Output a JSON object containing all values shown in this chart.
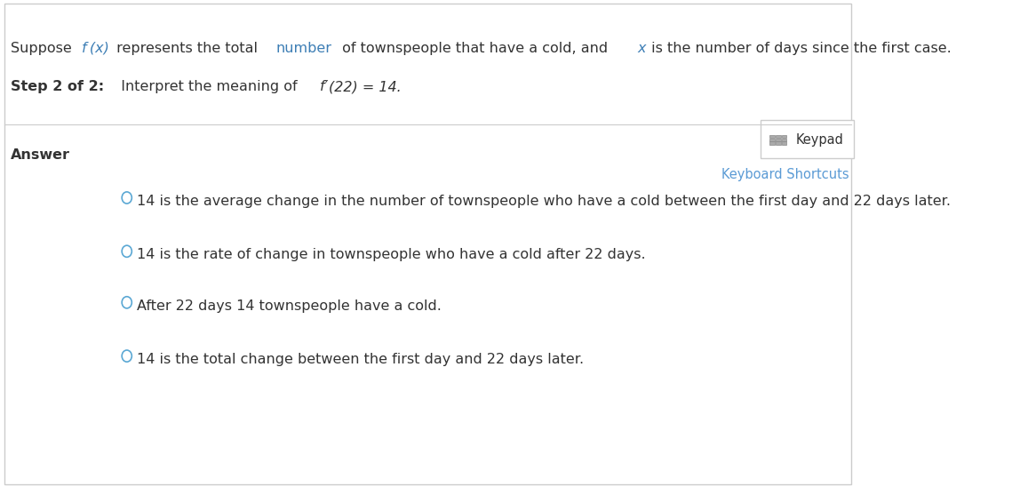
{
  "bg_color": "#ffffff",
  "border_color": "#cccccc",
  "text_color_blue": "#3d7eb5",
  "text_color_dark": "#333333",
  "text_color_link": "#5b9bd5",
  "answer_label": "Answer",
  "keypad_label": "Keypad",
  "keyboard_label": "Keyboard Shortcuts",
  "option1": "14 is the average change in the number of townspeople who have a cold between the first day and 22 days later.",
  "option2": "14 is the rate of change in townspeople who have a cold after 22 days.",
  "option3": "After 22 days 14 townspeople have a cold.",
  "option4": "14 is the total change between the first day and 22 days later.",
  "figwidth": 11.39,
  "figheight": 5.48,
  "radio_color": "#5ba8d4",
  "fs": 11.5
}
